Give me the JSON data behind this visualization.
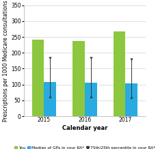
{
  "years": [
    "2015",
    "2016",
    "2017"
  ],
  "you_values": [
    242,
    238,
    267
  ],
  "median_values": [
    108,
    105,
    103
  ],
  "percentile_75": [
    183,
    183,
    178
  ],
  "percentile_25": [
    62,
    62,
    60
  ],
  "you_color": "#8dc63f",
  "median_color": "#29abe2",
  "marker_color": "#333333",
  "ylim": [
    0,
    350
  ],
  "yticks": [
    0,
    50,
    100,
    150,
    200,
    250,
    300,
    350
  ],
  "ylabel": "Prescriptions per 1000 Medicare consultations",
  "xlabel": "Calendar year",
  "legend_you": "You",
  "legend_median": "Median of GPs in your RA*",
  "legend_percentile": "75th/25th percentile in your RA*",
  "bar_width": 0.3,
  "label_fontsize": 5.5,
  "tick_fontsize": 5.5,
  "legend_fontsize": 4.2,
  "background_color": "#ffffff",
  "grid_color": "#d0d0d0"
}
